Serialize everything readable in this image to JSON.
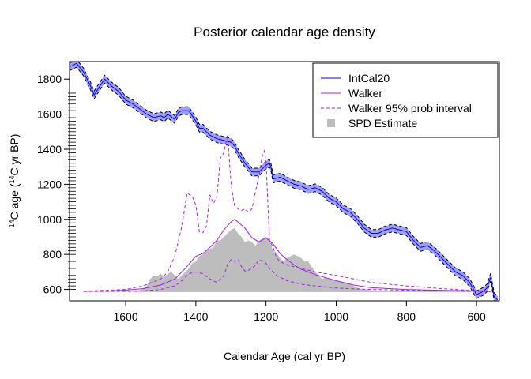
{
  "chart_data": {
    "type": "line",
    "title": "Posterior calendar age density",
    "xlabel": "Calendar Age (cal yr BP)",
    "ylabel_prefix": "14",
    "ylabel_mid": "C age (",
    "ylabel_sup2": "14",
    "ylabel_suffix": "C yr BP)",
    "xlim": [
      1760,
      535
    ],
    "ylim": [
      535,
      1900
    ],
    "x_reversed": true,
    "x_ticks": [
      1600,
      1400,
      1200,
      1000,
      800,
      600
    ],
    "y_ticks": [
      600,
      800,
      1000,
      1200,
      1400,
      1600,
      1800
    ],
    "grid": false,
    "legend_position": "top-right",
    "legend": [
      {
        "label": "IntCal20",
        "style": "line",
        "color": "#0000ff"
      },
      {
        "label": "Walker",
        "style": "line",
        "color": "#a020f0"
      },
      {
        "label": "Walker  95% prob interval",
        "style": "dashed",
        "color": "#a020f0"
      },
      {
        "label": "SPD Estimate",
        "style": "square",
        "color": "#bdbdbd"
      }
    ],
    "colors": {
      "intcal_line": "#0000ff",
      "intcal_band": "#9ea0ff",
      "walker": "#a020f0",
      "spd": "#bdbdbd"
    },
    "series": [
      {
        "name": "IntCal20",
        "x": [
          1760,
          1740,
          1720,
          1700,
          1690,
          1680,
          1660,
          1640,
          1620,
          1600,
          1580,
          1560,
          1540,
          1520,
          1500,
          1490,
          1480,
          1460,
          1450,
          1440,
          1420,
          1410,
          1400,
          1390,
          1380,
          1360,
          1340,
          1320,
          1300,
          1290,
          1280,
          1260,
          1240,
          1220,
          1200,
          1190,
          1185,
          1180,
          1160,
          1140,
          1120,
          1100,
          1080,
          1060,
          1040,
          1020,
          1000,
          980,
          960,
          940,
          920,
          900,
          880,
          860,
          840,
          820,
          800,
          780,
          760,
          740,
          720,
          700,
          680,
          660,
          640,
          620,
          600,
          580,
          570,
          560,
          550,
          540
        ],
        "y": [
          1870,
          1890,
          1840,
          1760,
          1710,
          1740,
          1800,
          1760,
          1730,
          1680,
          1660,
          1630,
          1600,
          1580,
          1590,
          1580,
          1600,
          1570,
          1610,
          1620,
          1620,
          1590,
          1560,
          1520,
          1520,
          1480,
          1460,
          1450,
          1440,
          1420,
          1380,
          1320,
          1270,
          1270,
          1310,
          1320,
          1290,
          1230,
          1240,
          1220,
          1200,
          1190,
          1170,
          1180,
          1160,
          1120,
          1100,
          1060,
          1040,
          1000,
          950,
          920,
          920,
          940,
          950,
          940,
          930,
          880,
          840,
          850,
          820,
          780,
          740,
          700,
          680,
          640,
          570,
          590,
          610,
          670,
          560,
          540
        ]
      },
      {
        "name": "Walker",
        "x": [
          1720,
          1650,
          1600,
          1550,
          1500,
          1460,
          1430,
          1400,
          1380,
          1360,
          1340,
          1320,
          1300,
          1290,
          1280,
          1260,
          1240,
          1220,
          1200,
          1180,
          1160,
          1140,
          1120,
          1100,
          1060,
          1000,
          950,
          900,
          800,
          700,
          600,
          560
        ],
        "y": [
          590,
          591,
          596,
          605,
          625,
          660,
          720,
          790,
          805,
          840,
          880,
          940,
          985,
          1000,
          985,
          950,
          895,
          870,
          895,
          860,
          805,
          770,
          740,
          715,
          685,
          650,
          625,
          610,
          600,
          595,
          592,
          590
        ]
      },
      {
        "name": "Walker  95% prob interval (upper)",
        "x": [
          1720,
          1600,
          1550,
          1500,
          1480,
          1460,
          1440,
          1425,
          1410,
          1400,
          1390,
          1380,
          1370,
          1360,
          1350,
          1340,
          1330,
          1320,
          1310,
          1305,
          1300,
          1295,
          1290,
          1280,
          1270,
          1260,
          1250,
          1240,
          1230,
          1220,
          1210,
          1205,
          1200,
          1195,
          1190,
          1180,
          1170,
          1160,
          1140,
          1120,
          1100,
          1060,
          1000,
          950,
          900,
          800,
          700,
          620,
          580,
          560
        ],
        "y": [
          590,
          600,
          620,
          660,
          700,
          790,
          960,
          1150,
          1130,
          1080,
          930,
          925,
          960,
          1140,
          1090,
          1130,
          1350,
          1380,
          1480,
          1350,
          1210,
          1140,
          1080,
          1060,
          1050,
          1060,
          1040,
          1060,
          1160,
          1250,
          1370,
          1390,
          1330,
          1100,
          880,
          840,
          780,
          760,
          740,
          730,
          720,
          700,
          680,
          660,
          640,
          620,
          605,
          595,
          590,
          588
        ]
      },
      {
        "name": "Walker  95% prob interval (lower)",
        "x": [
          1720,
          1600,
          1550,
          1500,
          1460,
          1440,
          1420,
          1400,
          1380,
          1360,
          1340,
          1320,
          1310,
          1300,
          1290,
          1280,
          1270,
          1260,
          1250,
          1240,
          1230,
          1220,
          1210,
          1200,
          1190,
          1180,
          1170,
          1160,
          1140,
          1120,
          1100,
          1060,
          1020,
          1000,
          960,
          900,
          800,
          700,
          600,
          560
        ],
        "y": [
          588,
          589,
          592,
          600,
          620,
          650,
          690,
          700,
          690,
          660,
          640,
          680,
          740,
          770,
          760,
          770,
          730,
          705,
          710,
          720,
          740,
          770,
          760,
          750,
          720,
          700,
          680,
          670,
          650,
          640,
          630,
          620,
          612,
          608,
          604,
          600,
          596,
          592,
          589,
          588
        ]
      },
      {
        "name": "SPD Estimate",
        "x": [
          1720,
          1620,
          1580,
          1560,
          1540,
          1530,
          1520,
          1510,
          1500,
          1490,
          1480,
          1470,
          1460,
          1450,
          1440,
          1430,
          1420,
          1410,
          1400,
          1390,
          1380,
          1370,
          1360,
          1350,
          1340,
          1330,
          1320,
          1310,
          1300,
          1290,
          1280,
          1270,
          1260,
          1250,
          1240,
          1230,
          1220,
          1210,
          1200,
          1190,
          1180,
          1170,
          1160,
          1150,
          1140,
          1130,
          1120,
          1110,
          1100,
          1090,
          1080,
          1070,
          1060,
          1050,
          1040,
          1030,
          1020,
          1000,
          980,
          960,
          940,
          920,
          900,
          860,
          800,
          750,
          700,
          680,
          650,
          600,
          560
        ],
        "y": [
          585,
          585,
          588,
          595,
          620,
          660,
          680,
          675,
          690,
          670,
          690,
          700,
          680,
          660,
          680,
          700,
          720,
          750,
          760,
          790,
          800,
          820,
          830,
          840,
          880,
          880,
          900,
          920,
          940,
          950,
          920,
          900,
          870,
          880,
          870,
          850,
          880,
          890,
          900,
          880,
          820,
          810,
          780,
          760,
          780,
          790,
          800,
          790,
          780,
          760,
          760,
          730,
          700,
          680,
          660,
          670,
          660,
          650,
          640,
          630,
          610,
          600,
          595,
          592,
          590,
          595,
          600,
          592,
          590,
          588,
          585
        ]
      }
    ],
    "tick_marks_y": [
      600,
      620,
      640,
      660,
      680,
      700,
      720,
      740,
      760,
      800,
      820,
      840,
      860,
      880,
      900,
      920,
      940,
      960,
      980,
      1000,
      1010,
      1020,
      1040,
      1060,
      1080,
      1100,
      1120,
      1140,
      1160,
      1180,
      1200,
      1220,
      1240,
      1260,
      1280,
      1300,
      1320,
      1340,
      1360,
      1380,
      1400,
      1420,
      1440,
      1460,
      1480,
      1500,
      1520,
      1540,
      1560,
      1580,
      1600,
      1620,
      1640,
      1660,
      1680,
      1700,
      1720
    ]
  }
}
